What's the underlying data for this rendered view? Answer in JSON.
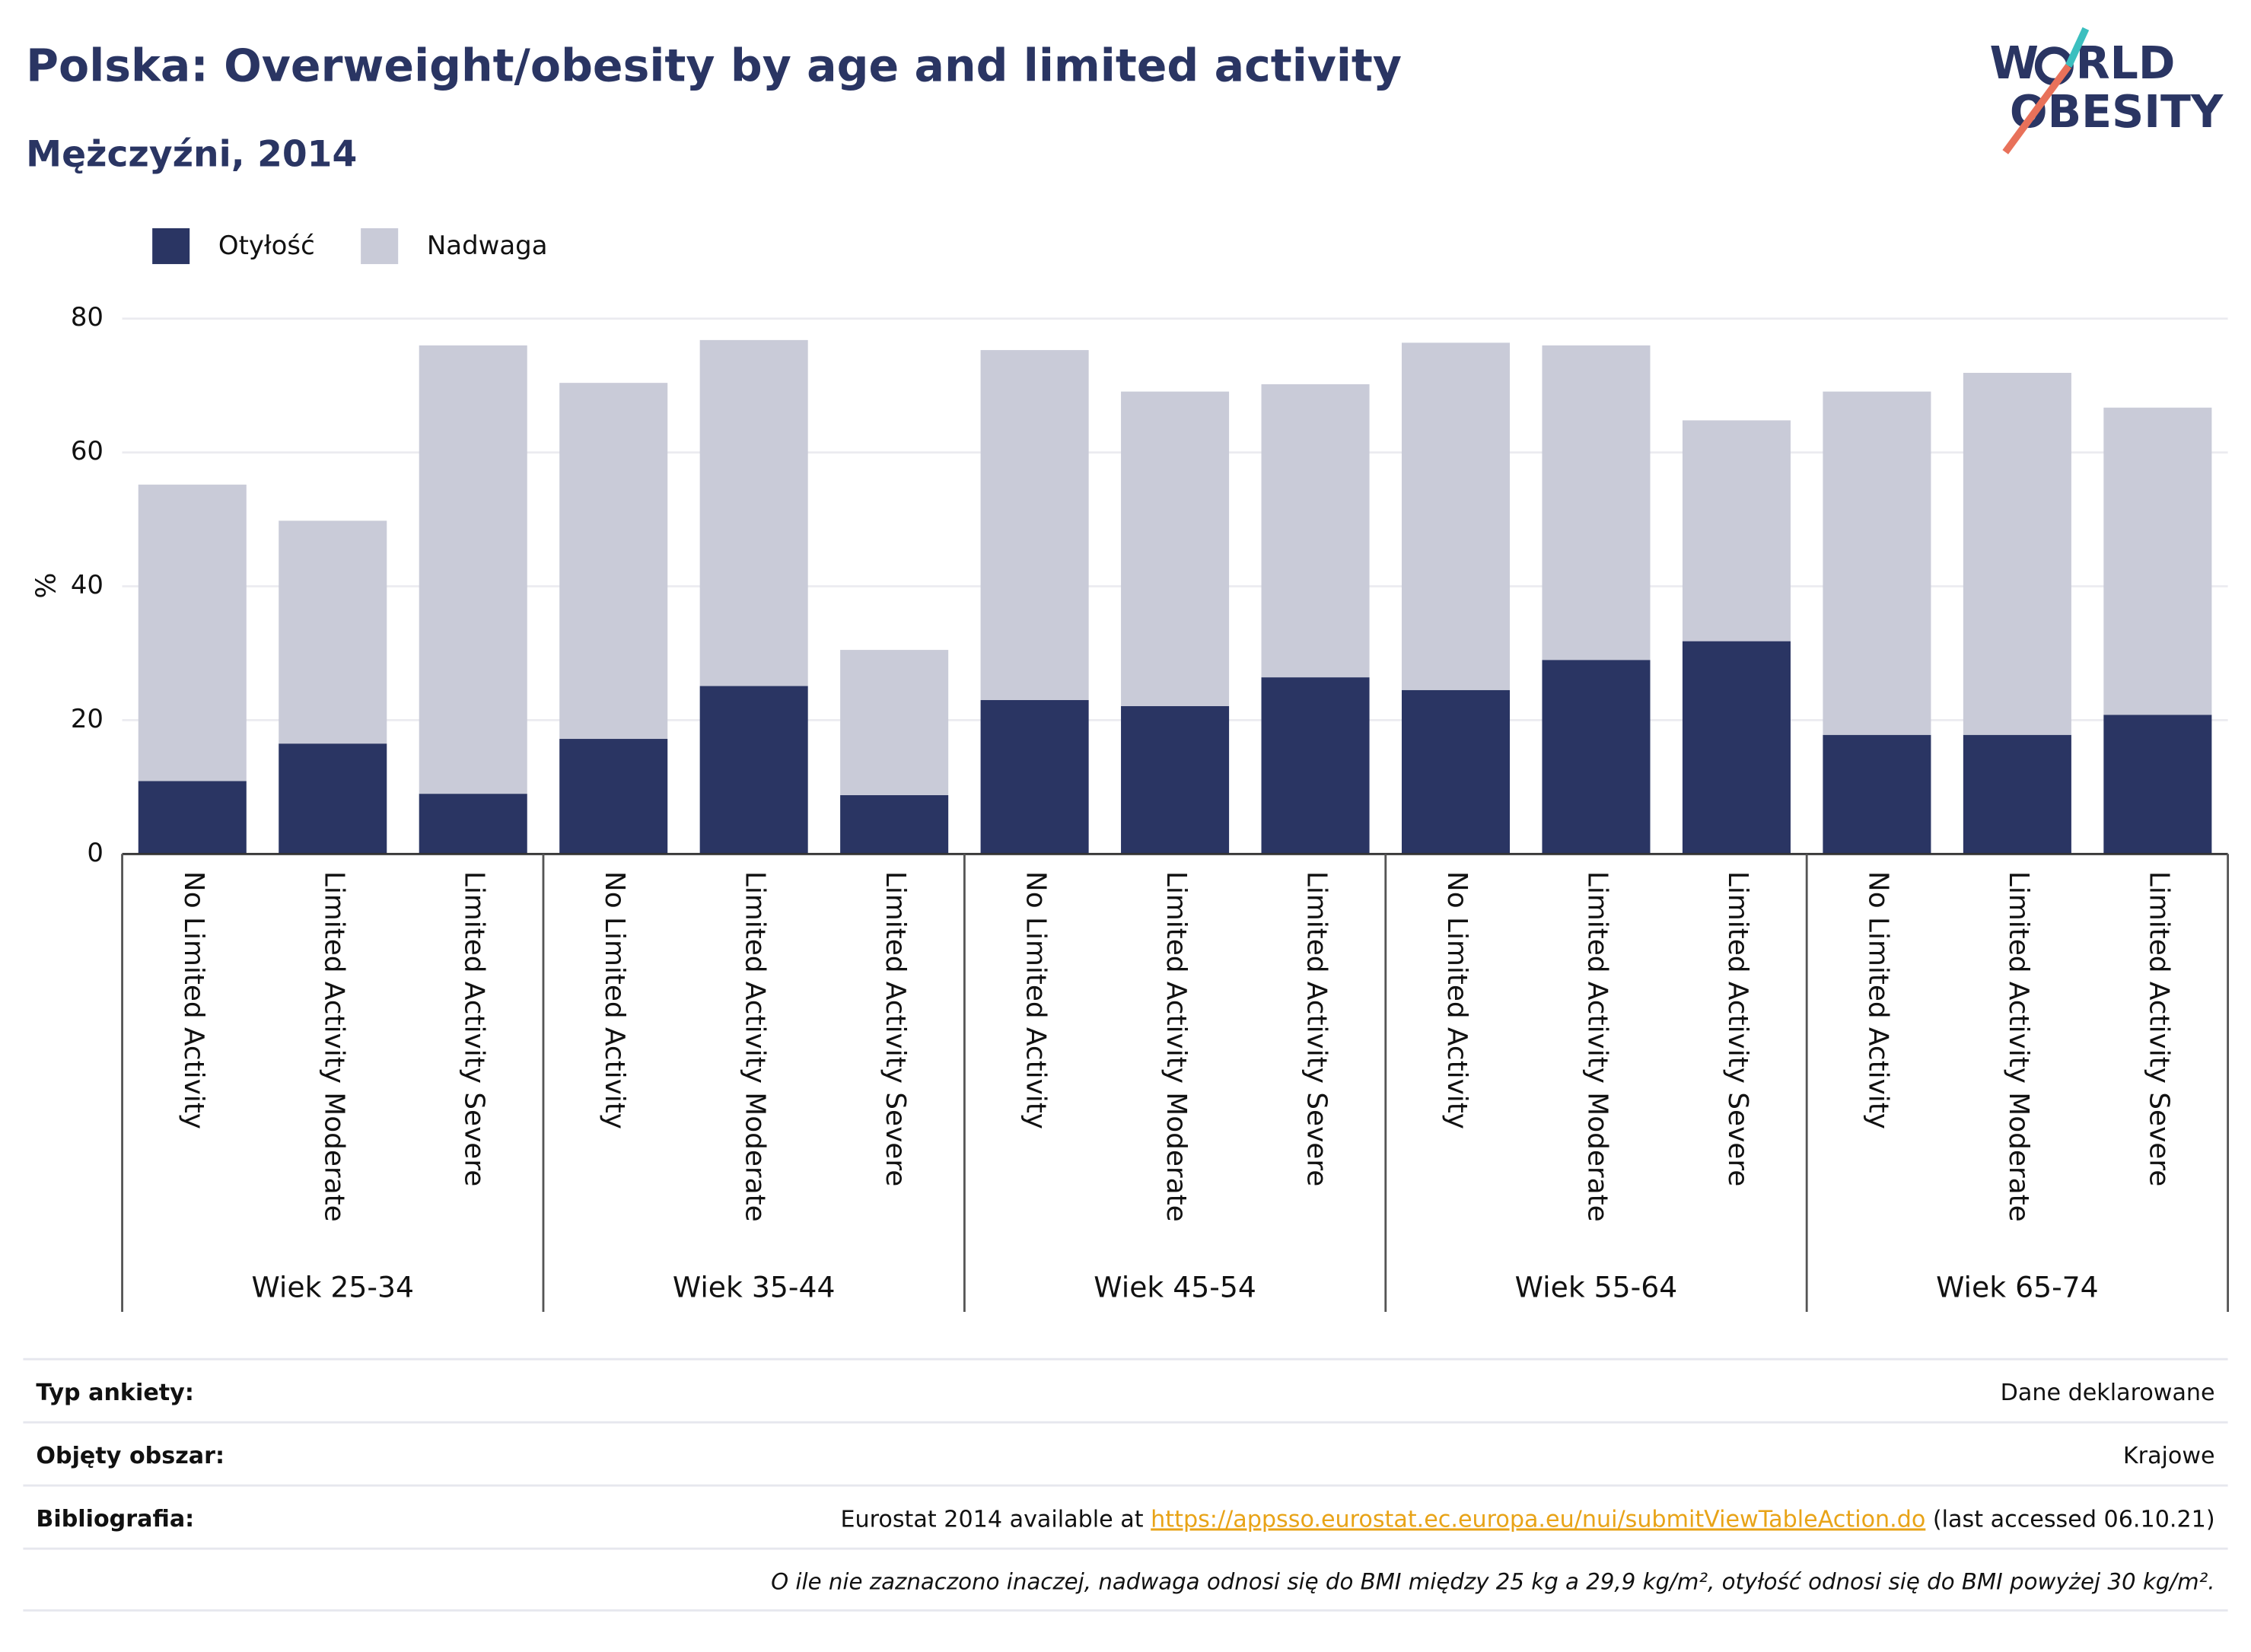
{
  "chart_data": {
    "type": "stacked-bar",
    "title": "Polska: Overweight/obesity by age and limited activity",
    "subtitle": "Mężczyźni, 2014",
    "y_label": "%",
    "categories": [
      "No Limited Activity",
      "Limited Activity Moderate",
      "Limited Activity Severe",
      "No Limited Activity",
      "Limited Activity Moderate",
      "Limited Activity Severe",
      "No Limited Activity",
      "Limited Activity Moderate",
      "Limited Activity Severe",
      "No Limited Activity",
      "Limited Activity Moderate",
      "Limited Activity Severe",
      "No Limited Activity",
      "Limited Activity Moderate",
      "Limited Activity Severe"
    ],
    "groups": [
      "Wiek 25-34",
      "Wiek 35-44",
      "Wiek 45-54",
      "Wiek 55-64",
      "Wiek 65-74"
    ],
    "series": [
      {
        "name": "Otyłość",
        "color": "#2a3563",
        "values": [
          10.9,
          16.5,
          9.0,
          17.2,
          25.1,
          8.8,
          23.0,
          22.1,
          26.4,
          24.5,
          29.0,
          31.8,
          17.8,
          17.8,
          20.8
        ]
      },
      {
        "name": "Nadwaga",
        "color": "#c9cbd8",
        "values": [
          44.3,
          33.3,
          67.0,
          53.2,
          51.7,
          21.7,
          52.3,
          47.0,
          43.8,
          51.9,
          47.0,
          33.0,
          51.3,
          54.1,
          45.9
        ]
      }
    ],
    "ylim": [
      0,
      80
    ],
    "yticks": [
      0,
      20,
      40,
      60,
      80
    ],
    "grid": true,
    "legend": "top-left"
  },
  "logo": [
    "W",
    "RLD",
    "OBESITY"
  ],
  "footer": {
    "rows": [
      {
        "label": "Typ ankiety:",
        "value": "Dane deklarowane"
      },
      {
        "label": "Objęty obszar:",
        "value": "Krajowe"
      },
      {
        "label": "Bibliografia:",
        "text": "Eurostat 2014 available at ",
        "link": "https://appsso.eurostat.ec.europa.eu/nui/submitViewTableAction.do",
        "after": " (last accessed 06.10.21)"
      }
    ],
    "note": "O ile nie zaznaczono inaczej, nadwaga odnosi się do BMI między 25 kg a 29,9 kg/m², otyłość odnosi się do BMI powyżej 30 kg/m²."
  }
}
